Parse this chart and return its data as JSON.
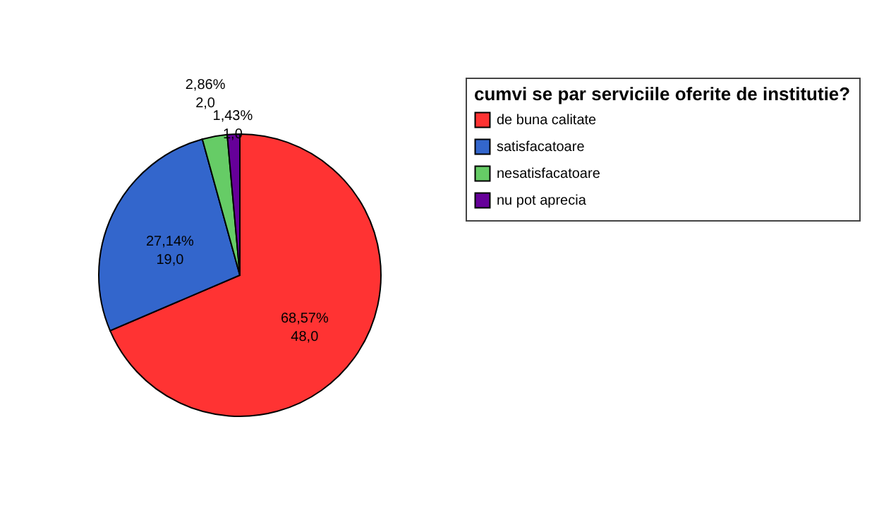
{
  "chart_data": {
    "type": "pie",
    "legend_title": "cumvi se par serviciile oferite de institutie?",
    "categories": [
      "de buna calitate",
      "satisfacatoare",
      "nesatisfacatoare",
      "nu pot aprecia"
    ],
    "values": [
      48,
      19,
      2,
      1
    ],
    "colors": [
      "#ff3333",
      "#3366cc",
      "#66cc66",
      "#660099"
    ],
    "value_labels": [
      "68,57%\n48,0",
      "27,14%\n19,0",
      "2,86%\n2,0",
      "1,43%\n1,0"
    ],
    "legend": "top right"
  }
}
